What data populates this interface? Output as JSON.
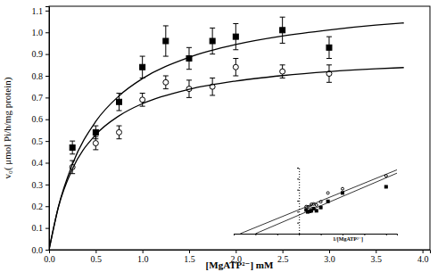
{
  "chart_data": [
    {
      "type": "scatter",
      "xlabel": "[MgATP²⁻] mM",
      "ylabel": "v₀( μmol Pi/h/mg protein)",
      "xlim": [
        0,
        4.08
      ],
      "xticks": [
        {
          "value": 0,
          "label": "0.0"
        },
        0.5,
        {
          "value": 1,
          "label": "1.0"
        },
        1.5,
        {
          "value": 2,
          "label": "2.0"
        },
        2.5,
        {
          "value": 3,
          "label": "3.0"
        },
        3.5,
        {
          "value": 4,
          "label": "4.0"
        }
      ],
      "ylim": [
        0,
        1.12
      ],
      "yticks": [
        {
          "value": 0,
          "label": "0.0"
        },
        0.1,
        0.2,
        0.3,
        0.4,
        0.5,
        0.6,
        0.7,
        0.8,
        0.9,
        {
          "value": 1,
          "label": "1.0"
        },
        1.1
      ],
      "series": [
        {
          "type": "scatter",
          "marker": "square",
          "color": "#000000",
          "x": [
            0.25,
            0.5,
            0.75,
            1.0,
            1.25,
            1.5,
            1.75,
            2.0,
            2.5,
            3.0
          ],
          "values": [
            0.47,
            0.54,
            0.68,
            0.84,
            0.96,
            0.88,
            0.96,
            0.98,
            1.01,
            0.93
          ],
          "errors": [
            0.03,
            0.03,
            0.04,
            0.05,
            0.07,
            0.05,
            0.06,
            0.06,
            0.06,
            0.05
          ]
        },
        {
          "type": "scatter",
          "marker": "circle-open",
          "color": "#000000",
          "x": [
            0.25,
            0.5,
            0.75,
            1.0,
            1.25,
            1.5,
            1.75,
            2.0,
            2.5,
            3.0
          ],
          "values": [
            0.38,
            0.49,
            0.54,
            0.69,
            0.77,
            0.74,
            0.75,
            0.84,
            0.82,
            0.81
          ],
          "errors": [
            0.03,
            0.03,
            0.03,
            0.03,
            0.03,
            0.04,
            0.04,
            0.04,
            0.03,
            0.04
          ]
        },
        {
          "type": "line",
          "line_style": "solid",
          "color": "#000000",
          "x": [
            0,
            0.1,
            0.25,
            0.5,
            0.75,
            1.0,
            1.5,
            2.0,
            2.5,
            3.0,
            3.5,
            3.8
          ],
          "values": [
            0,
            0.197,
            0.393,
            0.59,
            0.708,
            0.787,
            0.885,
            0.944,
            0.983,
            1.011,
            1.033,
            1.043
          ]
        },
        {
          "type": "line",
          "line_style": "solid",
          "color": "#000000",
          "x": [
            0,
            0.1,
            0.25,
            0.5,
            0.75,
            1.0,
            1.5,
            2.0,
            2.5,
            3.0,
            3.5,
            3.8
          ],
          "values": [
            0,
            0.196,
            0.371,
            0.529,
            0.616,
            0.672,
            0.738,
            0.776,
            0.801,
            0.819,
            0.832,
            0.838
          ]
        }
      ]
    },
    {
      "type": "scatter",
      "xlabel": "1/[MgATP²⁻]",
      "tick_labels": false,
      "xlim": [
        -3,
        4.5
      ],
      "xticks": [
        -3,
        -2,
        -1,
        0,
        1,
        2,
        3,
        4
      ],
      "ylim": [
        0,
        3
      ],
      "yticks": [
        0,
        0.5,
        1,
        1.5,
        2,
        2.5,
        3
      ],
      "series": [
        {
          "type": "scatter",
          "marker": "square",
          "color": "#000000",
          "x": [
            4,
            2,
            1.33,
            1,
            0.8,
            0.67,
            0.57,
            0.5,
            0.4,
            0.33
          ],
          "values": [
            2.13,
            1.85,
            1.47,
            1.19,
            1.04,
            1.14,
            1.04,
            1.02,
            0.99,
            1.08
          ]
        },
        {
          "type": "scatter",
          "marker": "circle-open",
          "color": "#000000",
          "x": [
            4,
            2,
            1.33,
            1,
            0.8,
            0.67,
            0.57,
            0.5,
            0.4,
            0.33
          ],
          "values": [
            2.63,
            2.04,
            1.85,
            1.45,
            1.3,
            1.35,
            1.33,
            1.19,
            1.22,
            1.23
          ]
        },
        {
          "type": "line",
          "line_style": "solid",
          "color": "#000000",
          "x": [
            -2,
            4.5
          ],
          "values": [
            0,
            2.75
          ]
        },
        {
          "type": "line",
          "line_style": "solid",
          "color": "#000000",
          "x": [
            -2.7,
            4.5
          ],
          "values": [
            0,
            2.9
          ]
        }
      ]
    }
  ]
}
